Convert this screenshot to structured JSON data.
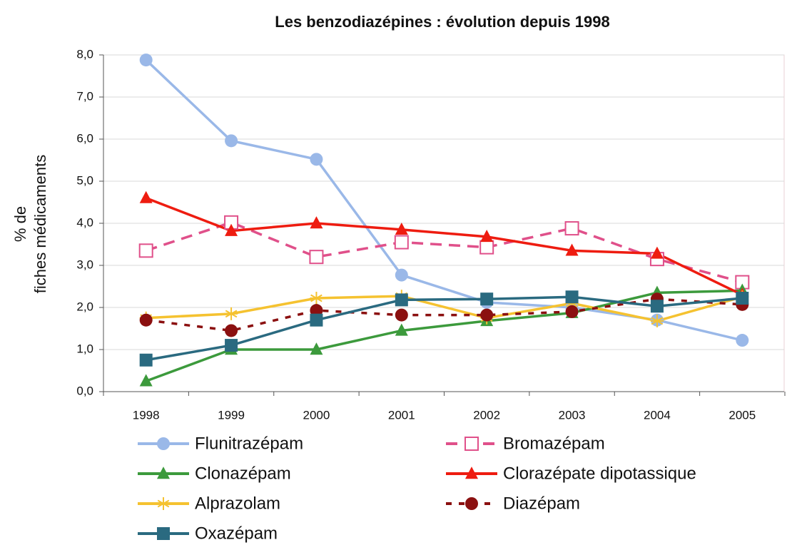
{
  "chart_data": {
    "type": "line",
    "title": "Les benzodiazépines : évolution depuis 1998",
    "y_label": [
      "% de",
      "fiches médicaments"
    ],
    "categories": [
      "1998",
      "1999",
      "2000",
      "2001",
      "2002",
      "2003",
      "2004",
      "2005"
    ],
    "ylim": [
      0,
      8
    ],
    "yticks": [
      {
        "value": 0,
        "label": "0,0"
      },
      {
        "value": 1,
        "label": "1,0"
      },
      {
        "value": 2,
        "label": "2,0"
      },
      {
        "value": 3,
        "label": "3,0"
      },
      {
        "value": 4,
        "label": "4,0"
      },
      {
        "value": 5,
        "label": "5,0"
      },
      {
        "value": 6,
        "label": "6,0"
      },
      {
        "value": 7,
        "label": "7,0"
      },
      {
        "value": 8,
        "label": "8,0"
      }
    ],
    "grid": true,
    "legend": "bottom",
    "series": [
      {
        "name": "Flunitrazépam",
        "color": "#9ab8e8",
        "marker": "circle",
        "dash": "solid",
        "values": [
          7.88,
          5.96,
          5.52,
          2.77,
          2.12,
          2.0,
          1.7,
          1.22
        ]
      },
      {
        "name": "Bromazépam",
        "color": "#e0508a",
        "marker": "open-square",
        "dash": "dashed",
        "values": [
          3.35,
          4.02,
          3.2,
          3.55,
          3.43,
          3.88,
          3.15,
          2.6
        ]
      },
      {
        "name": "Clonazépam",
        "color": "#3c9a3c",
        "marker": "triangle",
        "dash": "solid",
        "values": [
          0.25,
          1.0,
          1.0,
          1.45,
          1.68,
          1.87,
          2.35,
          2.4
        ]
      },
      {
        "name": "Clorazépate dipotassique",
        "color": "#ee1c10",
        "marker": "triangle",
        "dash": "solid",
        "values": [
          4.6,
          3.82,
          4.0,
          3.85,
          3.68,
          3.35,
          3.28,
          2.3
        ]
      },
      {
        "name": "Alprazolam",
        "color": "#f5c230",
        "marker": "star",
        "dash": "solid",
        "values": [
          1.75,
          1.85,
          2.22,
          2.27,
          1.75,
          2.1,
          1.68,
          2.25
        ]
      },
      {
        "name": "Diazépam",
        "color": "#8b1010",
        "marker": "circle",
        "dash": "dotted",
        "values": [
          1.7,
          1.45,
          1.93,
          1.82,
          1.82,
          1.9,
          2.2,
          2.07
        ]
      },
      {
        "name": "Oxazépam",
        "color": "#2a6a80",
        "marker": "square",
        "dash": "solid",
        "values": [
          0.75,
          1.1,
          1.7,
          2.18,
          2.2,
          2.25,
          2.03,
          2.22
        ]
      }
    ]
  }
}
